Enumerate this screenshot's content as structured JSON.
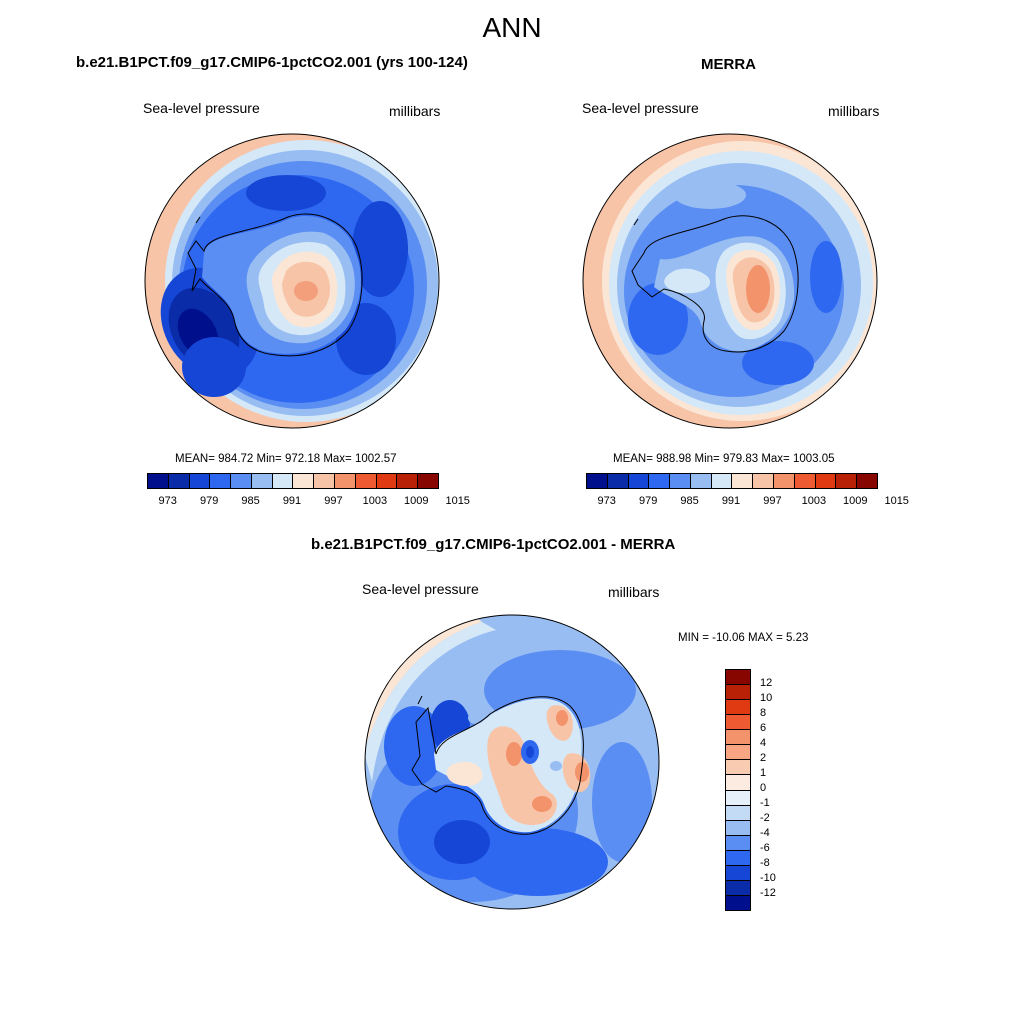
{
  "figure": {
    "title": "ANN",
    "variable_label": "Sea-level pressure",
    "units_label": "millibars"
  },
  "panels": {
    "model": {
      "title": "b.e21.B1PCT.f09_g17.CMIP6-1pctCO2.001 (yrs 100-124)",
      "stats": "MEAN= 984.72  Min= 972.18  Max= 1002.57",
      "colorbar_ticks": [
        "973",
        "979",
        "985",
        "991",
        "997",
        "1003",
        "1009",
        "1015"
      ]
    },
    "obs": {
      "title": "MERRA",
      "stats": "MEAN= 988.98  Min= 979.83  Max= 1003.05",
      "colorbar_ticks": [
        "973",
        "979",
        "985",
        "991",
        "997",
        "1003",
        "1009",
        "1015"
      ]
    },
    "diff": {
      "title": "b.e21.B1PCT.f09_g17.CMIP6-1pctCO2.001 - MERRA",
      "stats": "MIN = -10.06 MAX =   5.23",
      "colorbar_ticks": [
        "12",
        "10",
        "8",
        "6",
        "4",
        "2",
        "1",
        "0",
        "-1",
        "-2",
        "-4",
        "-6",
        "-8",
        "-10",
        "-12"
      ]
    }
  },
  "colors": {
    "field_colorbar": [
      "#000f8c",
      "#0b2ca8",
      "#1546d6",
      "#2f68f0",
      "#5b8ef2",
      "#98bdf2",
      "#d5e8f8",
      "#fbe6d6",
      "#f7c4a8",
      "#f3936c",
      "#ee5a32",
      "#e03a12",
      "#b82106",
      "#870600"
    ],
    "diff_colorbar": [
      "#870600",
      "#b82106",
      "#e03a12",
      "#ee5a32",
      "#f3936c",
      "#f7a582",
      "#f9ccb2",
      "#fbebe0",
      "#e6f0fa",
      "#c4dbf6",
      "#98bdf2",
      "#5b8ef2",
      "#2f68f0",
      "#1546d6",
      "#0b2ca8",
      "#000f8c"
    ]
  },
  "chart_data": [
    {
      "type": "heatmap",
      "projection": "south-polar-stereographic",
      "title": "b.e21.B1PCT.f09_g17.CMIP6-1pctCO2.001 (yrs 100-124)",
      "variable": "Sea-level pressure",
      "units": "millibars",
      "mean": 984.72,
      "min": 972.18,
      "max": 1002.57,
      "colorbar_levels": [
        970,
        973,
        976,
        979,
        982,
        985,
        988,
        991,
        994,
        997,
        1000,
        1003,
        1006,
        1009,
        1012,
        1015
      ]
    },
    {
      "type": "heatmap",
      "projection": "south-polar-stereographic",
      "title": "MERRA",
      "variable": "Sea-level pressure",
      "units": "millibars",
      "mean": 988.98,
      "min": 979.83,
      "max": 1003.05,
      "colorbar_levels": [
        970,
        973,
        976,
        979,
        982,
        985,
        988,
        991,
        994,
        997,
        1000,
        1003,
        1006,
        1009,
        1012,
        1015
      ]
    },
    {
      "type": "heatmap",
      "projection": "south-polar-stereographic",
      "title": "b.e21.B1PCT.f09_g17.CMIP6-1pctCO2.001 - MERRA",
      "variable": "Sea-level pressure",
      "units": "millibars",
      "min": -10.06,
      "max": 5.23,
      "colorbar_levels": [
        -12,
        -10,
        -8,
        -6,
        -4,
        -2,
        -1,
        0,
        1,
        2,
        4,
        6,
        8,
        10,
        12
      ]
    }
  ]
}
